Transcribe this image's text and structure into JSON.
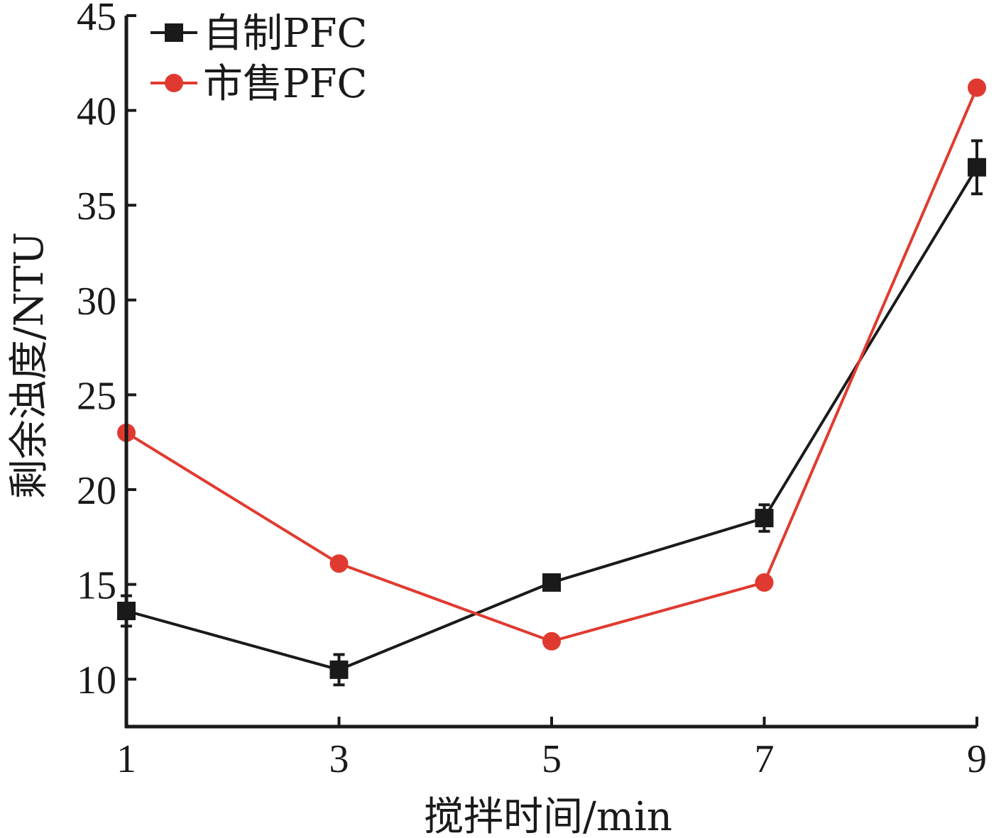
{
  "chart_data": {
    "type": "line",
    "title": "",
    "xlabel": "搅拌时间/min",
    "ylabel": "剩余浊度/NTU",
    "x": [
      1,
      3,
      5,
      7,
      9
    ],
    "xlim": [
      1,
      9
    ],
    "ylim": [
      7.5,
      45
    ],
    "xticks": [
      "1",
      "3",
      "5",
      "7",
      "9"
    ],
    "yticks": [
      "10",
      "15",
      "20",
      "25",
      "30",
      "35",
      "40",
      "45"
    ],
    "ytick_values": [
      10,
      15,
      20,
      25,
      30,
      35,
      40,
      45
    ],
    "grid": false,
    "legend_position": "top-left",
    "series": [
      {
        "name": "自制PFC",
        "color": "#1a1a1a",
        "marker": "square",
        "values": [
          13.6,
          10.5,
          15.1,
          18.5,
          37.0
        ],
        "errors": [
          0.8,
          0.8,
          0.3,
          0.7,
          1.4
        ]
      },
      {
        "name": "市售PFC",
        "color": "#e03a30",
        "marker": "circle",
        "values": [
          23.0,
          16.1,
          12.0,
          15.1,
          41.2
        ],
        "errors": [
          0,
          0,
          0,
          0,
          0
        ]
      }
    ]
  }
}
